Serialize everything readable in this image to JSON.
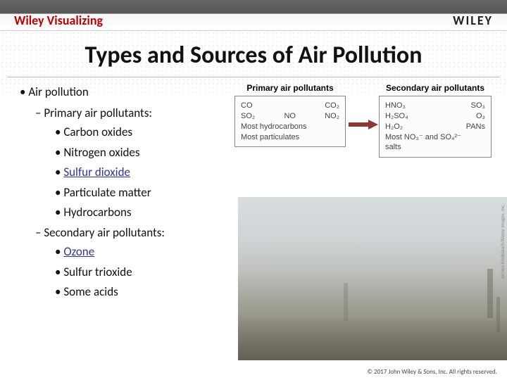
{
  "header": {
    "brand_left": "Wiley Visualizing",
    "brand_right": "WILEY"
  },
  "title": "Types and Sources of Air Pollution",
  "outline": {
    "l1": "Air pollution",
    "primary_header": "Primary air pollutants:",
    "primary_items": [
      "Carbon oxides",
      "Nitrogen oxides",
      "Sulfur dioxide",
      "Particulate matter",
      "Hydrocarbons"
    ],
    "primary_links": [
      false,
      false,
      true,
      false,
      false
    ],
    "secondary_header": "Secondary air pollutants:",
    "secondary_items": [
      "Ozone",
      "Sulfur trioxide",
      "Some acids"
    ],
    "secondary_links": [
      true,
      false,
      false
    ]
  },
  "diagram": {
    "primary_title": "Primary air pollutants",
    "secondary_title": "Secondary air pollutants",
    "primary_row1": [
      "CO",
      "CO₂"
    ],
    "primary_row2": [
      "SO₂",
      "NO",
      "NO₂"
    ],
    "primary_line3": "Most hydrocarbons",
    "primary_line4": "Most particulates",
    "secondary_row1": [
      "HNO₃",
      "SO₃"
    ],
    "secondary_row2": [
      "H₂SO₄",
      "O₃"
    ],
    "secondary_row3": [
      "H₂O₂",
      "PANs"
    ],
    "secondary_line4a": "Most NO₃⁻ and SO₄²⁻",
    "secondary_line4b": "salts",
    "arrow_color": "#8b3a2f",
    "box_border": "#888888",
    "text_color": "#444444"
  },
  "photo": {
    "credit": "Jochen Knoblauch/Alamy Images, Inc.",
    "sky_top": "#d8dde0",
    "ground": "#807e72"
  },
  "footer": "© 2017 John Wiley & Sons, Inc. All rights reserved.",
  "colors": {
    "brand_red": "#c00000",
    "title_color": "#111111",
    "link_color": "#333399",
    "background": "#ffffff"
  }
}
